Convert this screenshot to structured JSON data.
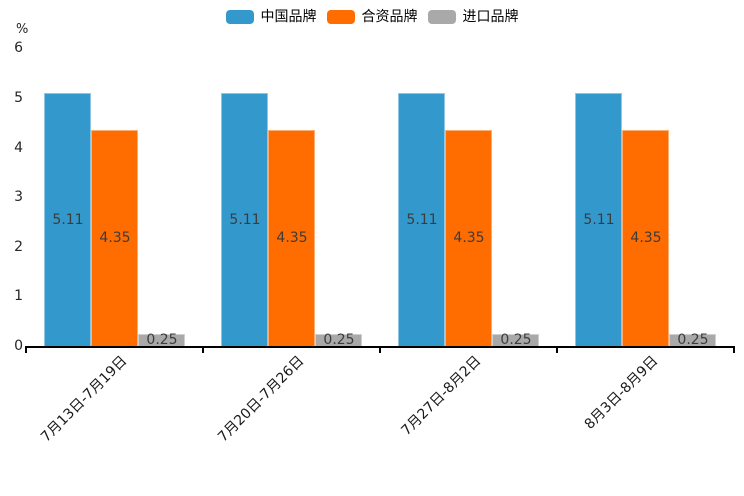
{
  "chart_data": {
    "type": "bar",
    "title": "",
    "ylabel": "%",
    "categories": [
      "7月13日-7月19日",
      "7月20日-7月26日",
      "7月27日-8月2日",
      "8月3日-8月9日"
    ],
    "series": [
      {
        "name": "中国品牌",
        "color": "#3398cc",
        "values": [
          5.11,
          5.11,
          5.11,
          5.11
        ]
      },
      {
        "name": "合资品牌",
        "color": "#ff6c00",
        "values": [
          4.35,
          4.35,
          4.35,
          4.35
        ]
      },
      {
        "name": "进口品牌",
        "color": "#a9a9a9",
        "values": [
          0.25,
          0.25,
          0.25,
          0.25
        ]
      }
    ],
    "ylim": [
      0,
      6
    ],
    "yticks": [
      0,
      1,
      2,
      3,
      4,
      5,
      6
    ],
    "legend_position": "top",
    "grid": false,
    "value_labels_shown": true,
    "value_label_format": "2dp",
    "xtick_rotation_deg": 45
  }
}
